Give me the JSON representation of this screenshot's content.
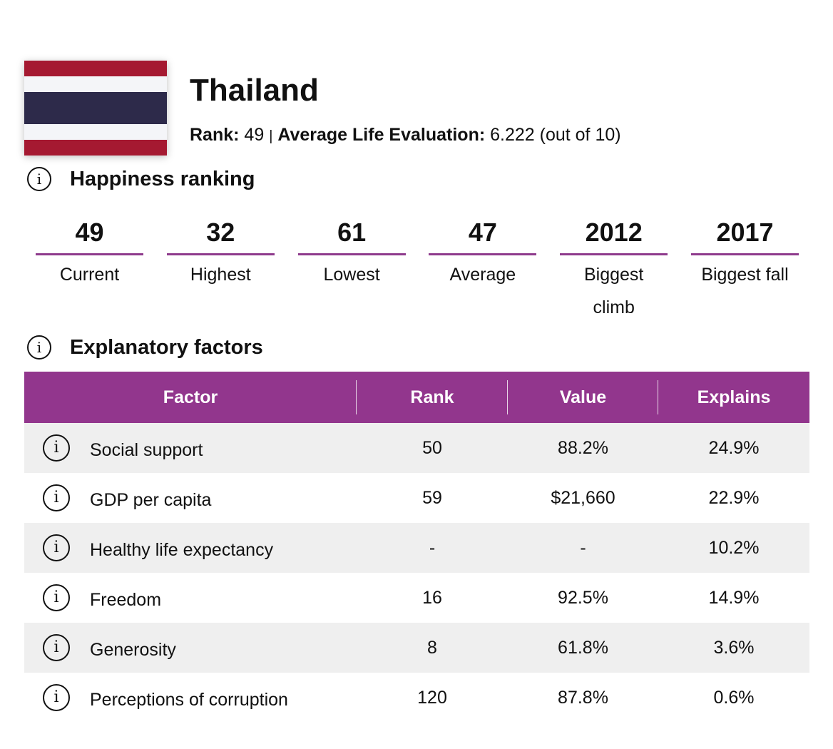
{
  "country": {
    "name": "Thailand",
    "flag_icon": "thailand-flag-icon",
    "flag_colors": [
      "#a51931",
      "#f4f5f8",
      "#2d2a4a"
    ]
  },
  "summary": {
    "rank_label": "Rank:",
    "rank_value": "49",
    "separator": "|",
    "evaluation_label": "Average Life Evaluation:",
    "evaluation_value": "6.222 (out of 10)"
  },
  "happiness_ranking": {
    "title": "Happiness ranking",
    "stats": [
      {
        "value": "49",
        "label": "Current"
      },
      {
        "value": "32",
        "label": "Highest"
      },
      {
        "value": "61",
        "label": "Lowest"
      },
      {
        "value": "47",
        "label": "Average"
      },
      {
        "value": "2012",
        "label": "Biggest climb"
      },
      {
        "value": "2017",
        "label": "Biggest fall"
      }
    ]
  },
  "explanatory_factors": {
    "title": "Explanatory factors",
    "accent_color": "#92368d",
    "columns": [
      "Factor",
      "Rank",
      "Value",
      "Explains"
    ],
    "rows": [
      {
        "factor": "Social support",
        "rank": "50",
        "value": "88.2%",
        "explains": "24.9%"
      },
      {
        "factor": "GDP per capita",
        "rank": "59",
        "value": "$21,660",
        "explains": "22.9%"
      },
      {
        "factor": "Healthy life expectancy",
        "rank": "-",
        "value": "-",
        "explains": "10.2%"
      },
      {
        "factor": "Freedom",
        "rank": "16",
        "value": "92.5%",
        "explains": "14.9%"
      },
      {
        "factor": "Generosity",
        "rank": "8",
        "value": "61.8%",
        "explains": "3.6%"
      },
      {
        "factor": "Perceptions of corruption",
        "rank": "120",
        "value": "87.8%",
        "explains": "0.6%"
      }
    ]
  }
}
